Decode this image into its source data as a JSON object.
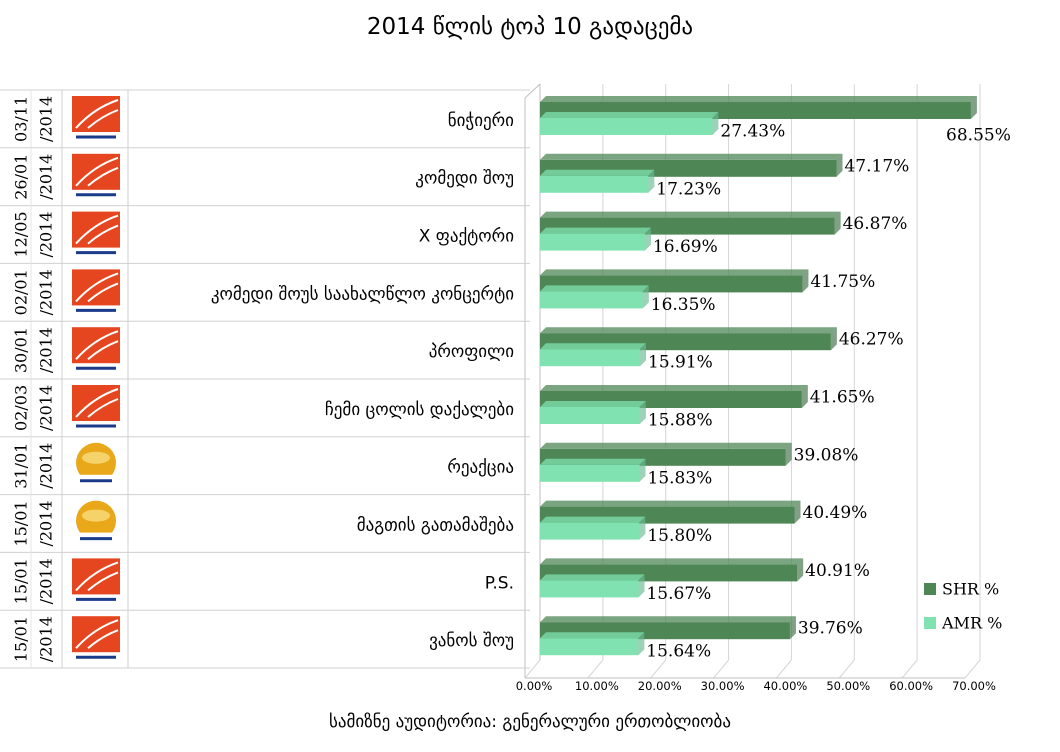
{
  "chart_data": {
    "type": "bar",
    "orientation": "horizontal",
    "title": "2014 წლის ტოპ 10 გადაცემა",
    "subtitle": "სამიზნე აუდიტორია: გენერალური ერთობლიობა",
    "xlim": [
      0,
      70
    ],
    "x_ticks": [
      "0.00%",
      "10.00%",
      "20.00%",
      "30.00%",
      "40.00%",
      "50.00%",
      "60.00%",
      "70.00%"
    ],
    "grid": "vertical",
    "legend_position": "bottom-right",
    "colors": {
      "SHR %": "#4e8755",
      "AMR %": "#7fe2b0"
    },
    "rows": [
      {
        "date": "03/11 /2014",
        "channel_logo": "rustavi-2-logo",
        "name": "ნიჭიერი",
        "shr": 68.55,
        "amr": 27.43,
        "shr_label": "68.55%",
        "amr_label": "27.43%"
      },
      {
        "date": "26/01 /2014",
        "channel_logo": "rustavi-2-logo",
        "name": "კომედი შოუ",
        "shr": 47.17,
        "amr": 17.23,
        "shr_label": "47.17%",
        "amr_label": "17.23%"
      },
      {
        "date": "12/05 /2014",
        "channel_logo": "rustavi-2-logo",
        "name": "X ფაქტორი",
        "shr": 46.87,
        "amr": 16.69,
        "shr_label": "46.87%",
        "amr_label": "16.69%"
      },
      {
        "date": "02/01 /2014",
        "channel_logo": "rustavi-2-logo",
        "name": "კომედი შოუს საახალწლო კონცერტი",
        "shr": 41.75,
        "amr": 16.35,
        "shr_label": "41.75%",
        "amr_label": "16.35%"
      },
      {
        "date": "30/01 /2014",
        "channel_logo": "rustavi-2-logo",
        "name": "პროფილი",
        "shr": 46.27,
        "amr": 15.91,
        "shr_label": "46.27%",
        "amr_label": "15.91%"
      },
      {
        "date": "02/03 /2014",
        "channel_logo": "rustavi-2-logo",
        "name": "ჩემი ცოლის დაქალები",
        "shr": 41.65,
        "amr": 15.88,
        "shr_label": "41.65%",
        "amr_label": "15.88%"
      },
      {
        "date": "31/01 /2014",
        "channel_logo": "imedi-logo",
        "name": "რეაქცია",
        "shr": 39.08,
        "amr": 15.83,
        "shr_label": "39.08%",
        "amr_label": "15.83%"
      },
      {
        "date": "15/01 /2014",
        "channel_logo": "imedi-logo",
        "name": "მაგთის გათამაშება",
        "shr": 40.49,
        "amr": 15.8,
        "shr_label": "40.49%",
        "amr_label": "15.80%"
      },
      {
        "date": "15/01 /2014",
        "channel_logo": "rustavi-2-logo",
        "name": "P.S.",
        "shr": 40.91,
        "amr": 15.67,
        "shr_label": "40.91%",
        "amr_label": "15.67%"
      },
      {
        "date": "15/01 /2014",
        "channel_logo": "rustavi-2-logo",
        "name": "ვანოს შოუ",
        "shr": 39.76,
        "amr": 15.64,
        "shr_label": "39.76%",
        "amr_label": "15.64%"
      }
    ],
    "legend": [
      {
        "name": "SHR %",
        "color_key": "SHR %"
      },
      {
        "name": "AMR %",
        "color_key": "AMR %"
      }
    ]
  }
}
